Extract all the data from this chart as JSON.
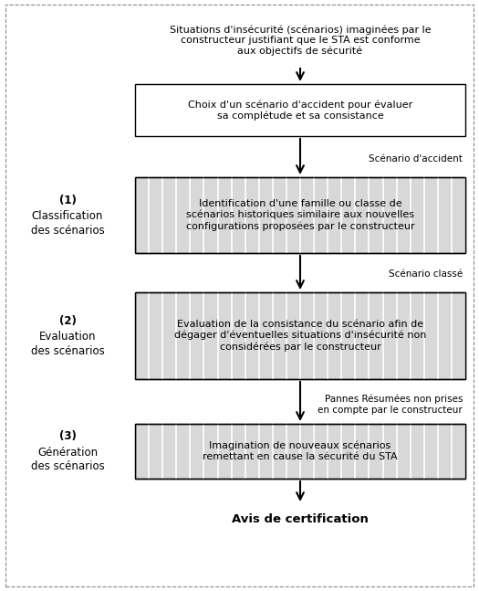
{
  "fig_width": 5.25,
  "fig_height": 6.47,
  "bg_color": "#ffffff",
  "border_color": "#000000",
  "top_text": "Situations d'insécurité (scénarios) imaginées par le\nconstructeur justifiant que le STA est conforme\naux objectifs de sécurité",
  "box1_text": "Choix d'un scénario d'accident pour évaluer\nsa complétude et sa consistance",
  "label1_arrow": "Scénario d'accident",
  "box2_text": "Identification d'une famille ou classe de\nscénarios historiques similaire aux nouvelles\nconfigurations proposées par le constructeur",
  "label2_arrow": "Scénario classé",
  "box3_text": "Evaluation de la consistance du scénario afin de\ndégager d'éventuelles situations d'insécurité non\nconsidérées par le constructeur",
  "label3_arrow": "Pannes Résumées non prises\nen compte par le constructeur",
  "box4_text": "Imagination de nouveaux scénarios\nremettant en cause la sécurité du STA",
  "bottom_text": "Avis de certification",
  "side1_bold": "(1)",
  "side1_text": "Classification\ndes scénarios",
  "side2_bold": "(2)",
  "side2_text": "Evaluation\ndes scénarios",
  "side3_bold": "(3)",
  "side3_text": "Génération\ndes scénarios",
  "font_size_main": 8.0,
  "font_size_side": 8.5,
  "font_size_bottom": 9.5,
  "hatch_color": "#c8c8c8",
  "hatch_bg": "#e8e8e8"
}
